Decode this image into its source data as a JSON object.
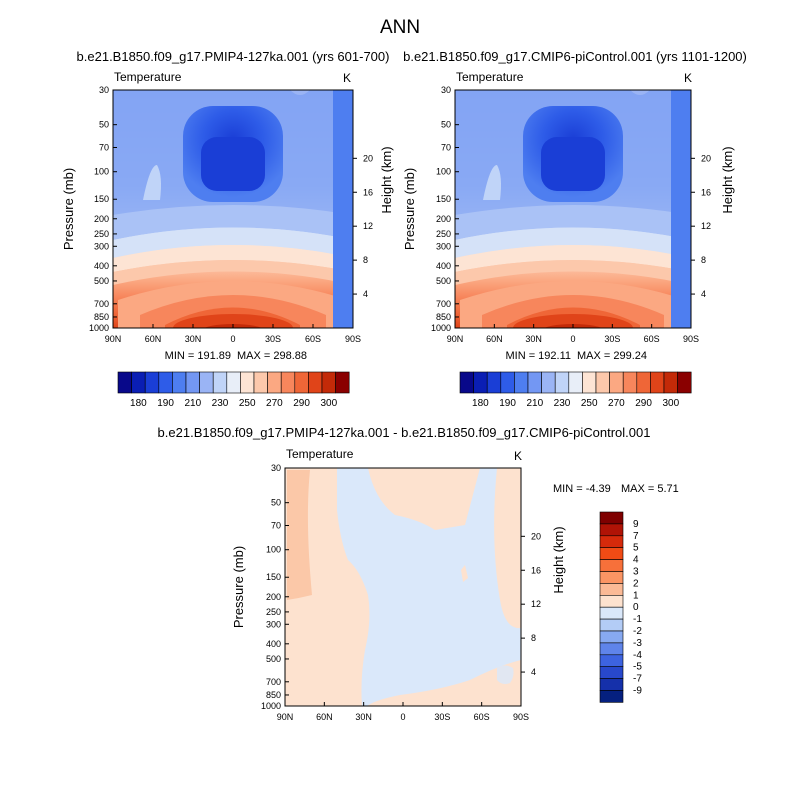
{
  "figure_title": "ANN",
  "chart_data": [
    {
      "type": "heatmap",
      "title": "b.e21.B1850.f09_g17.PMIP4-127ka.001 (yrs 601-700)",
      "left_label": "Temperature",
      "units": "K",
      "xlabel": "",
      "ylabel": "Pressure (mb)",
      "ylabel_right": "Height (km)",
      "x_ticks": [
        "90N",
        "60N",
        "30N",
        "0",
        "30S",
        "60S",
        "90S"
      ],
      "y_ticks": [
        "30",
        "50",
        "70",
        "100",
        "150",
        "200",
        "250",
        "300",
        "400",
        "500",
        "700",
        "850",
        "1000"
      ],
      "y_ticks_right": [
        "20",
        "16",
        "12",
        "8",
        "4"
      ],
      "min_label": "MIN = 191.89",
      "max_label": "MAX = 298.88",
      "min": 191.89,
      "max": 298.88,
      "colorbar_ticks": [
        "180",
        "190",
        "210",
        "230",
        "250",
        "270",
        "290",
        "300"
      ]
    },
    {
      "type": "heatmap",
      "title": "b.e21.B1850.f09_g17.CMIP6-piControl.001 (yrs 1101-1200)",
      "left_label": "Temperature",
      "units": "K",
      "xlabel": "",
      "ylabel": "Pressure (mb)",
      "ylabel_right": "Height (km)",
      "x_ticks": [
        "90N",
        "60N",
        "30N",
        "0",
        "30S",
        "60S",
        "90S"
      ],
      "y_ticks": [
        "30",
        "50",
        "70",
        "100",
        "150",
        "200",
        "250",
        "300",
        "400",
        "500",
        "700",
        "850",
        "1000"
      ],
      "y_ticks_right": [
        "20",
        "16",
        "12",
        "8",
        "4"
      ],
      "min_label": "MIN = 192.11",
      "max_label": "MAX = 299.24",
      "min": 192.11,
      "max": 299.24,
      "colorbar_ticks": [
        "180",
        "190",
        "210",
        "230",
        "250",
        "270",
        "290",
        "300"
      ]
    },
    {
      "type": "heatmap",
      "title": "b.e21.B1850.f09_g17.PMIP4-127ka.001 - b.e21.B1850.f09_g17.CMIP6-piControl.001",
      "left_label": "Temperature",
      "units": "K",
      "xlabel": "",
      "ylabel": "Pressure (mb)",
      "ylabel_right": "Height (km)",
      "x_ticks": [
        "90N",
        "60N",
        "30N",
        "0",
        "30S",
        "60S",
        "90S"
      ],
      "y_ticks": [
        "30",
        "50",
        "70",
        "100",
        "150",
        "200",
        "250",
        "300",
        "400",
        "500",
        "700",
        "850",
        "1000"
      ],
      "y_ticks_right": [
        "20",
        "16",
        "12",
        "8",
        "4"
      ],
      "min_label": "MIN =  -4.39",
      "max_label": "MAX =   5.71",
      "min": -4.39,
      "max": 5.71,
      "colorbar_ticks": [
        "9",
        "7",
        "5",
        "4",
        "3",
        "2",
        "1",
        "0",
        "-1",
        "-2",
        "-3",
        "-4",
        "-5",
        "-7",
        "-9"
      ]
    }
  ],
  "colors": {
    "temp_scale": [
      "#08088a",
      "#0a1eb4",
      "#1a3ed6",
      "#2e5ce8",
      "#4e7ef0",
      "#7397f3",
      "#9ab4f5",
      "#c0d4f8",
      "#e8eef8",
      "#fde4d4",
      "#fcc8ab",
      "#fba882",
      "#f7865c",
      "#ef6637",
      "#e04419",
      "#c32a08",
      "#8a0000"
    ],
    "diff_scale": [
      "#7f0000",
      "#b01306",
      "#d62a0b",
      "#f04b15",
      "#f7703a",
      "#fb9564",
      "#fbba96",
      "#fde2cf",
      "#dae8fa",
      "#b3ccf6",
      "#87a9f1",
      "#5f84ea",
      "#3d63e0",
      "#2848cc",
      "#1530aa",
      "#05207f"
    ]
  }
}
